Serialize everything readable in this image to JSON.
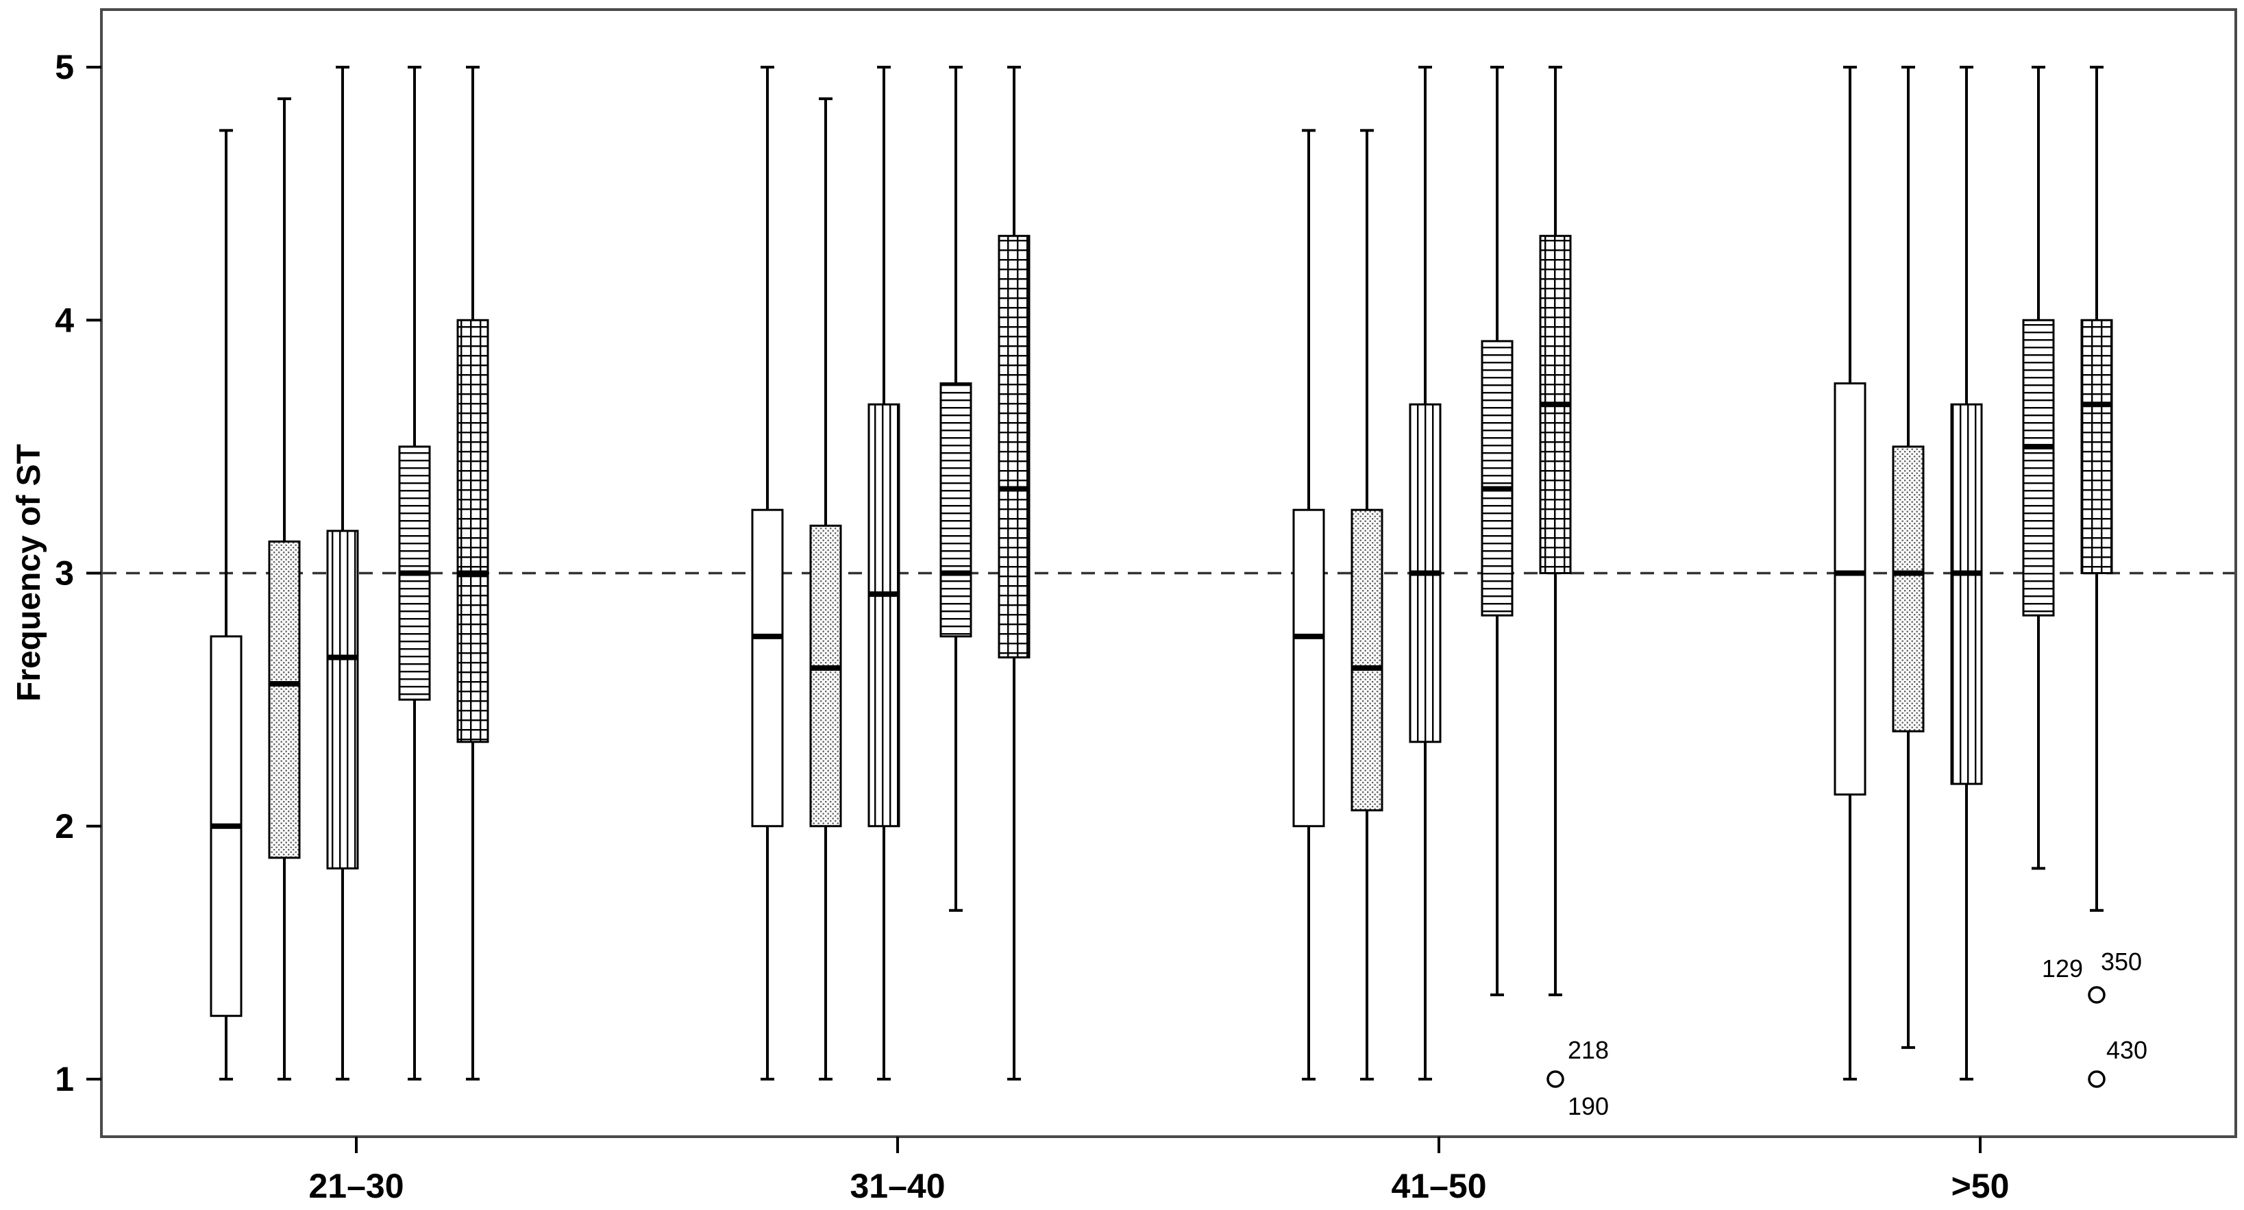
{
  "chart_data": {
    "type": "boxplot",
    "title": "",
    "xlabel": "",
    "ylabel": "Frequency of ST",
    "ylim": [
      0.8,
      5.2
    ],
    "yticks": [
      1,
      2,
      3,
      4,
      5
    ],
    "categories": [
      "21–30",
      "31–40",
      "41–50",
      ">50"
    ],
    "reference_line": {
      "y": 3,
      "style": "dashed"
    },
    "grid": false,
    "legend": "none",
    "colors": {
      "frame": "#4a4a4a",
      "box_fill": "#ffffff",
      "stroke": "#000000",
      "reference": "#333333"
    },
    "series": [
      {
        "pattern": "plain",
        "boxes": [
          {
            "min": 1,
            "q1": 1.25,
            "median": 2,
            "q3": 2.75,
            "max": 4.75
          },
          {
            "min": 1,
            "q1": 2,
            "median": 2.75,
            "q3": 3.25,
            "max": 5
          },
          {
            "min": 1,
            "q1": 2,
            "median": 2.75,
            "q3": 3.25,
            "max": 4.75
          },
          {
            "min": 1,
            "q1": 2.125,
            "median": 3,
            "q3": 3.75,
            "max": 5
          }
        ]
      },
      {
        "pattern": "dotted",
        "boxes": [
          {
            "min": 1,
            "q1": 1.875,
            "median": 2.5625,
            "q3": 3.125,
            "max": 4.875
          },
          {
            "min": 1,
            "q1": 2,
            "median": 2.625,
            "q3": 3.1875,
            "max": 4.875
          },
          {
            "min": 1,
            "q1": 2.0625,
            "median": 2.625,
            "q3": 3.25,
            "max": 4.75
          },
          {
            "min": 1.125,
            "q1": 2.375,
            "median": 3,
            "q3": 3.5,
            "max": 5
          }
        ]
      },
      {
        "pattern": "vertical-lines",
        "boxes": [
          {
            "min": 1,
            "q1": 1.833,
            "median": 2.667,
            "q3": 3.167,
            "max": 5
          },
          {
            "min": 1,
            "q1": 2,
            "median": 2.917,
            "q3": 3.667,
            "max": 5
          },
          {
            "min": 1,
            "q1": 2.333,
            "median": 3,
            "q3": 3.667,
            "max": 5
          },
          {
            "min": 1,
            "q1": 2.167,
            "median": 3,
            "q3": 3.667,
            "max": 5
          }
        ]
      },
      {
        "pattern": "horizontal-lines",
        "boxes": [
          {
            "min": 1,
            "q1": 2.5,
            "median": 3,
            "q3": 3.5,
            "max": 5
          },
          {
            "min": 1.667,
            "q1": 2.75,
            "median": 3,
            "q3": 3.75,
            "max": 5
          },
          {
            "min": 1.333,
            "q1": 2.833,
            "median": 3.333,
            "q3": 3.917,
            "max": 5
          },
          {
            "min": 1.833,
            "q1": 2.833,
            "median": 3.5,
            "q3": 4,
            "max": 5
          }
        ]
      },
      {
        "pattern": "grid",
        "boxes": [
          {
            "min": 1,
            "q1": 2.333,
            "median": 3,
            "q3": 4,
            "max": 5
          },
          {
            "min": 1,
            "q1": 2.667,
            "median": 3.333,
            "q3": 4.333,
            "max": 5
          },
          {
            "min": 1.333,
            "q1": 3,
            "median": 3.667,
            "q3": 4.333,
            "max": 5,
            "outliers": [
              {
                "y": 1,
                "labels": [
                  "218",
                  "190"
                ]
              }
            ]
          },
          {
            "min": 1.667,
            "q1": 3,
            "median": 3.667,
            "q3": 4,
            "max": 5,
            "outliers": [
              {
                "y": 1.333,
                "labels": [
                  "129",
                  "350"
                ]
              },
              {
                "y": 1,
                "labels": [
                  "430"
                ]
              }
            ]
          }
        ]
      }
    ]
  }
}
